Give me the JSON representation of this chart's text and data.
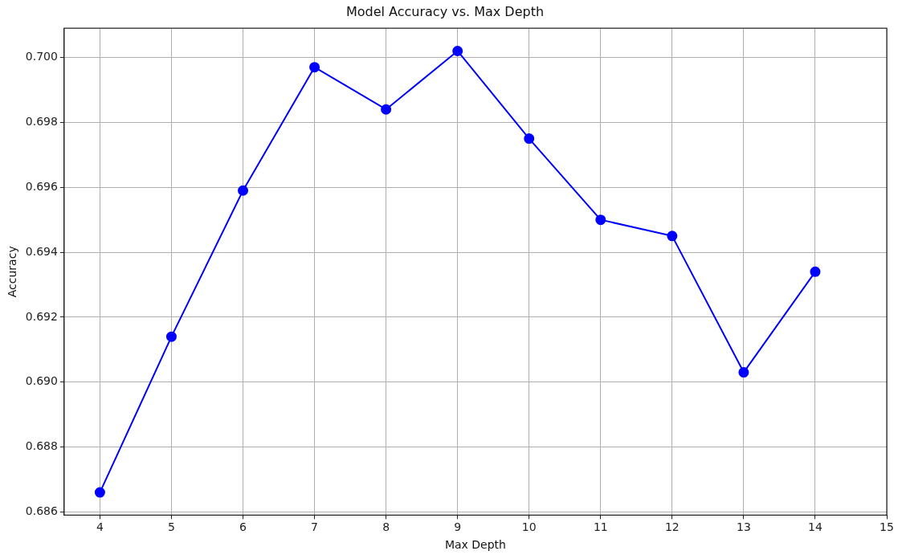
{
  "chart_data": {
    "type": "line",
    "title": "Model Accuracy vs. Max Depth",
    "xlabel": "Max Depth",
    "ylabel": "Accuracy",
    "x": [
      4,
      5,
      6,
      7,
      8,
      9,
      10,
      11,
      12,
      13,
      14
    ],
    "series": [
      {
        "color": "#0000ff",
        "values": [
          0.6866,
          0.6914,
          0.6959,
          0.6997,
          0.6984,
          0.7002,
          0.6975,
          0.695,
          0.6945,
          0.6903,
          0.6934
        ]
      }
    ],
    "xlim": [
      3.5,
      15
    ],
    "xticks": [
      4,
      5,
      6,
      7,
      8,
      9,
      10,
      11,
      12,
      13,
      14,
      15
    ],
    "ylim": [
      0.6859,
      0.7009
    ],
    "yticks": [
      {
        "value": 0.686,
        "label": "0.686"
      },
      {
        "value": 0.688,
        "label": "0.688"
      },
      {
        "value": 0.69,
        "label": "0.690"
      },
      {
        "value": 0.692,
        "label": "0.692"
      },
      {
        "value": 0.694,
        "label": "0.694"
      },
      {
        "value": 0.696,
        "label": "0.696"
      },
      {
        "value": 0.698,
        "label": "0.698"
      },
      {
        "value": 0.7,
        "label": "0.700"
      }
    ],
    "grid": true,
    "marker": "circle",
    "line_style": "solid",
    "legend": false
  }
}
